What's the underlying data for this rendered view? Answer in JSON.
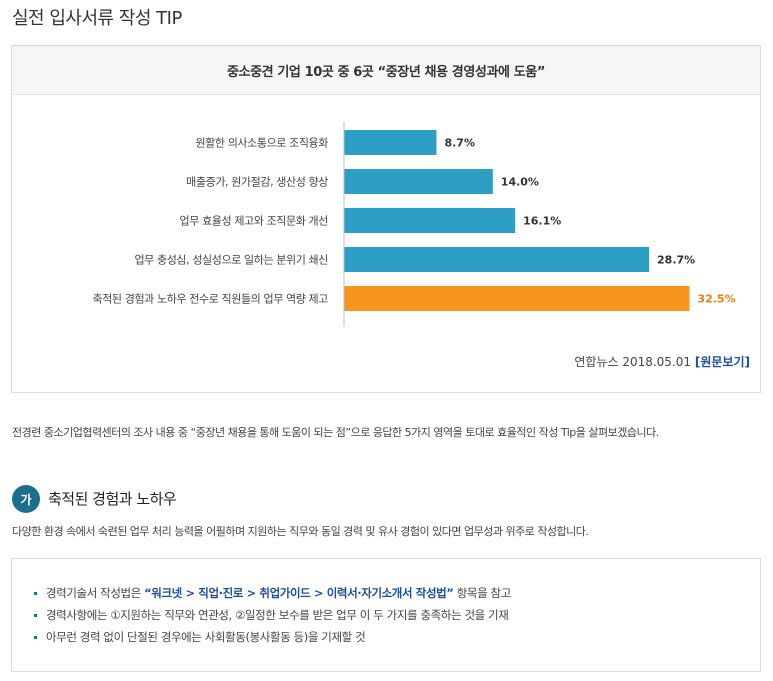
{
  "page": {
    "title": "실전 입사서류 작성 TIP"
  },
  "chart_title": "중소중견 기업 10곳 중 6곳 “중장년 채용 경영성과에 도움”",
  "chart_data": {
    "type": "bar",
    "orientation": "horizontal",
    "title": "중소중견 기업 10곳 중 6곳 “중장년 채용 경영성과에 도움”",
    "categories": [
      "원활한 의사소통으로 조직융화",
      "매출증가, 원가절감, 생산성 향상",
      "업무 효율성 제고와 조직문화 개선",
      "업무 충성심, 성실성으로 일하는 분위기 쇄신",
      "축적된 경험과 노하우 전수로 직원들의 업무 역량 제고"
    ],
    "values": [
      8.7,
      14.0,
      16.1,
      28.7,
      32.5
    ],
    "value_labels": [
      "8.7%",
      "14.0%",
      "16.1%",
      "28.7%",
      "32.5%"
    ],
    "colors": [
      "#2e9fc4",
      "#2e9fc4",
      "#2e9fc4",
      "#2e9fc4",
      "#f7951d"
    ],
    "label_colors": [
      "#333333",
      "#333333",
      "#333333",
      "#333333",
      "#f07d18"
    ],
    "xlim": [
      0,
      35
    ],
    "grid": false
  },
  "source": {
    "text": "연합뉴스 2018.05.01",
    "link": "[원문보기]"
  },
  "intro": "전경련 중소기업협력센터의 조사 내용 중 “중장년 채용을 통해 도움이 되는 점”으로 응답한 5가지 영역을 토대로 효율적인 작성 Tip을 살펴보겠습니다.",
  "section": {
    "badge": "가",
    "title": "축적된 경험과 노하우",
    "description": "다양한 환경 속에서 숙련된 업무 처리 능력을 어필하며 지원하는 직무와 동일 경력 및 유사 경험이 있다면 업무성과 위주로 작성합니다."
  },
  "tips": {
    "item1_prefix": "경력기술서 작성법은 ",
    "item1_path": "“워크넷 > 직업·진로 > 취업가이드 > 이력서·자기소개서 작성법”",
    "item1_suffix": " 항목을 참고",
    "item2": "경력사항에는 ①지원하는 직무와 연관성, ②일정한 보수를 받은 업무 이 두 가지를 충족하는 것을 기재",
    "item3": "아무런 경력 없이 단절된 경우에는 사회활동(봉사활동 등)을 기재할 것"
  }
}
